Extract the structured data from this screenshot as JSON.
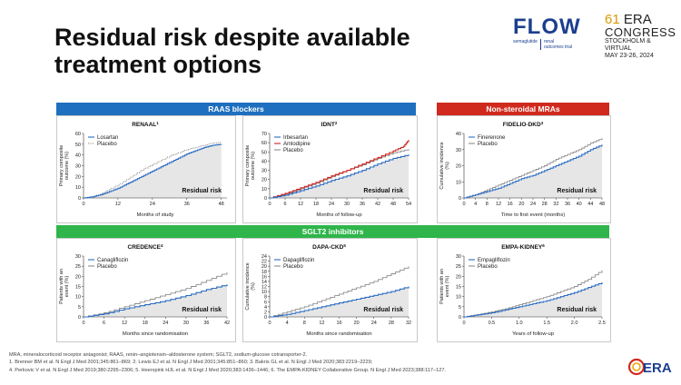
{
  "slide": {
    "title_line1": "Residual risk despite available",
    "title_line2": "treatment options"
  },
  "logos": {
    "flow_word": "FLOW",
    "flow_sub_a": "semaglutide",
    "flow_sub_b1": "renal",
    "flow_sub_b2": "outcomes trial",
    "era_num": "61",
    "era_word": "ERA",
    "era_congress": "CONGRESS",
    "era_city": "STOCKHOLM & VIRTUAL",
    "era_dates": "MAY 23-26, 2024",
    "era_bottom": "ERA"
  },
  "colors": {
    "blue_banner": "#1e6fbf",
    "red_banner": "#d02a1e",
    "green_banner": "#2fb54a",
    "treatment_line": "#2b6cc2",
    "placebo_line": "#8c8c8c",
    "amlodipine_line": "#d0231f",
    "shade": "#e6e6e6"
  },
  "banners": {
    "raas": "RAAS blockers",
    "mra": "Non-steroidal MRAs",
    "sglt2": "SGLT2 inhibitors"
  },
  "chart_data": [
    {
      "id": "renaal",
      "type": "line",
      "title": "RENAAL",
      "title_ref": "1",
      "xlabel": "Months of study",
      "ylabel": "Primary composite outcome (%)",
      "xlim": [
        0,
        50
      ],
      "ylim": [
        0,
        60
      ],
      "xticks": [
        0,
        12,
        24,
        36,
        48
      ],
      "yticks": [
        0,
        10,
        20,
        30,
        40,
        50,
        60
      ],
      "annotation": "Residual risk",
      "placebo_style": "dotted",
      "series": [
        {
          "name": "Losartan",
          "role": "treatment",
          "x": [
            0,
            3,
            6,
            9,
            12,
            15,
            18,
            21,
            24,
            27,
            30,
            33,
            36,
            39,
            42,
            45,
            48
          ],
          "y": [
            0,
            1,
            3,
            6,
            9,
            13,
            17,
            21,
            25,
            29,
            33,
            37,
            41,
            44,
            47,
            49,
            50
          ]
        },
        {
          "name": "Placebo",
          "role": "placebo",
          "x": [
            0,
            3,
            6,
            9,
            12,
            15,
            18,
            21,
            24,
            27,
            30,
            33,
            36,
            39,
            42,
            45,
            48
          ],
          "y": [
            0,
            1,
            4,
            8,
            12,
            17,
            22,
            27,
            31,
            35,
            39,
            42,
            45,
            47,
            49,
            51,
            52
          ]
        }
      ]
    },
    {
      "id": "idnt",
      "type": "line",
      "title": "IDNT",
      "title_ref": "2",
      "xlabel": "Months of follow-up",
      "ylabel": "Primary composite outcome (%)",
      "xlim": [
        0,
        54
      ],
      "ylim": [
        0,
        70
      ],
      "xticks": [
        0,
        6,
        12,
        18,
        24,
        30,
        36,
        42,
        48,
        54
      ],
      "yticks": [
        0,
        10,
        20,
        30,
        40,
        50,
        60,
        70
      ],
      "annotation": "Residual risk",
      "placebo_style": "solid",
      "series": [
        {
          "name": "Irbesartan",
          "role": "treatment",
          "x": [
            0,
            6,
            12,
            18,
            24,
            30,
            36,
            42,
            48,
            54
          ],
          "y": [
            0,
            3,
            8,
            13,
            19,
            24,
            30,
            37,
            43,
            47
          ]
        },
        {
          "name": "Amlodipine",
          "role": "comparator",
          "x": [
            0,
            6,
            12,
            18,
            24,
            30,
            36,
            42,
            48,
            52,
            54
          ],
          "y": [
            0,
            5,
            11,
            17,
            24,
            30,
            37,
            44,
            51,
            56,
            63
          ]
        },
        {
          "name": "Placebo",
          "role": "placebo",
          "x": [
            0,
            6,
            12,
            18,
            24,
            30,
            36,
            42,
            48,
            54
          ],
          "y": [
            0,
            4,
            10,
            16,
            23,
            30,
            36,
            43,
            49,
            53
          ]
        }
      ]
    },
    {
      "id": "fidelio",
      "type": "line",
      "title": "FIDELIO-DKD",
      "title_ref": "3",
      "xlabel": "Time to first event (months)",
      "ylabel": "Cumulative incidence (%)",
      "xlim": [
        0,
        48
      ],
      "ylim": [
        0,
        40
      ],
      "xticks": [
        0,
        4,
        8,
        12,
        16,
        20,
        24,
        28,
        32,
        36,
        40,
        44,
        48
      ],
      "yticks": [
        0,
        10,
        20,
        30,
        40
      ],
      "annotation": "Residual risk",
      "placebo_style": "solid",
      "series": [
        {
          "name": "Finerenone",
          "role": "treatment",
          "x": [
            0,
            4,
            8,
            12,
            16,
            20,
            24,
            28,
            32,
            36,
            40,
            44,
            48
          ],
          "y": [
            0,
            2,
            4,
            6,
            9,
            12,
            14,
            17,
            20,
            23,
            26,
            30,
            33
          ]
        },
        {
          "name": "Placebo",
          "role": "placebo",
          "x": [
            0,
            4,
            8,
            12,
            16,
            20,
            24,
            28,
            32,
            36,
            40,
            44,
            48
          ],
          "y": [
            0,
            2,
            5,
            8,
            11,
            14,
            17,
            20,
            24,
            27,
            30,
            34,
            37
          ]
        }
      ]
    },
    {
      "id": "credence",
      "type": "line",
      "title": "CREDENCE",
      "title_ref": "4",
      "xlabel": "Months since randomisation",
      "ylabel": "Patients with an event (%)",
      "xlim": [
        0,
        42
      ],
      "ylim": [
        0,
        30
      ],
      "xticks": [
        0,
        6,
        12,
        18,
        24,
        30,
        36,
        42
      ],
      "yticks": [
        0,
        5,
        10,
        15,
        20,
        25,
        30
      ],
      "annotation": "Residual risk",
      "placebo_style": "solid",
      "series": [
        {
          "name": "Canagliflozin",
          "role": "treatment",
          "x": [
            0,
            6,
            12,
            18,
            24,
            30,
            36,
            42
          ],
          "y": [
            0,
            1.5,
            4,
            6,
            8,
            10.5,
            13.5,
            16
          ]
        },
        {
          "name": "Placebo",
          "role": "placebo",
          "x": [
            0,
            6,
            12,
            18,
            24,
            30,
            36,
            42
          ],
          "y": [
            0,
            2,
            5,
            8,
            11,
            14,
            18,
            22
          ]
        }
      ]
    },
    {
      "id": "dapackd",
      "type": "line",
      "title": "DAPA-CKD",
      "title_ref": "5",
      "xlabel": "Months since randomisation",
      "ylabel": "Cumulative incidence (%)",
      "xlim": [
        0,
        32
      ],
      "ylim": [
        0,
        24
      ],
      "xticks": [
        0,
        4,
        8,
        12,
        16,
        20,
        24,
        28,
        32
      ],
      "yticks": [
        0,
        2,
        4,
        6,
        8,
        10,
        12,
        14,
        16,
        18,
        20,
        22,
        24
      ],
      "annotation": "Residual risk",
      "placebo_style": "solid",
      "series": [
        {
          "name": "Dapagliflozin",
          "role": "treatment",
          "x": [
            0,
            4,
            8,
            12,
            16,
            20,
            24,
            28,
            32
          ],
          "y": [
            0,
            1,
            2.5,
            4,
            5.5,
            7,
            8.5,
            10,
            12
          ]
        },
        {
          "name": "Placebo",
          "role": "placebo",
          "x": [
            0,
            4,
            8,
            12,
            16,
            20,
            24,
            28,
            32
          ],
          "y": [
            0,
            2,
            4,
            6.5,
            9,
            11.5,
            14,
            17,
            20
          ]
        }
      ]
    },
    {
      "id": "empakidney",
      "type": "line",
      "title": "EMPA-KIDNEY",
      "title_ref": "6",
      "xlabel": "Years of follow-up",
      "ylabel": "Patients with an event (%)",
      "xlim": [
        0,
        2.5
      ],
      "ylim": [
        0,
        30
      ],
      "xticks": [
        0,
        0.5,
        1,
        1.5,
        2,
        2.5
      ],
      "xtick_labels": [
        "0",
        "0.5",
        "1.0",
        "1.5",
        "2.0",
        "2.5"
      ],
      "yticks": [
        0,
        5,
        10,
        15,
        20,
        25,
        30
      ],
      "annotation": "Residual risk",
      "placebo_style": "solid",
      "series": [
        {
          "name": "Empagliflozin",
          "role": "treatment",
          "x": [
            0,
            0.25,
            0.5,
            0.75,
            1,
            1.25,
            1.5,
            1.75,
            2,
            2.25,
            2.5
          ],
          "y": [
            0,
            1,
            2,
            3.5,
            5,
            6.5,
            8,
            10,
            12,
            14.5,
            17
          ]
        },
        {
          "name": "Placebo",
          "role": "placebo",
          "x": [
            0,
            0.25,
            0.5,
            0.75,
            1,
            1.25,
            1.5,
            1.75,
            2,
            2.25,
            2.5
          ],
          "y": [
            0,
            1.2,
            2.5,
            4,
            6,
            8,
            10,
            12.5,
            15,
            18.5,
            23
          ]
        }
      ]
    }
  ],
  "footer": {
    "line1": "MRA, mineralocorticoid receptor antagonist; RAAS, renin–angiotensin–aldosterone system; SGLT2, sodium-glucose cotransporter-2.",
    "line2": "1. Brenner BM et al. N Engl J Med 2001;345:861–869; 2. Lewis EJ et al. N Engl J Med 2001;345:851–860; 3. Bakris GL et al. N Engl J Med 2020;383:2219–2229;",
    "line3": "4. Perkovic V et al. N Engl J Med 2019;380:2295–2306; 5. Heerspink HJL et al. N Engl J Med 2020;383:1436–1446; 6. The EMPA-KIDNEY Collaborative Group. N Engl J Med 2023;388:117–127."
  }
}
